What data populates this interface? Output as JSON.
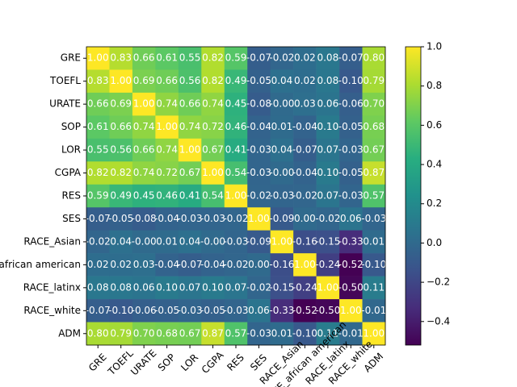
{
  "chart_data": {
    "type": "heatmap",
    "colormap": "viridis",
    "categories": [
      "GRE",
      "TOEFL",
      "URATE",
      "SOP",
      "LOR",
      "CGPA",
      "RES",
      "SES",
      "RACE_Asian",
      "RACE_african american",
      "RACE_latinx",
      "RACE_white",
      "ADM"
    ],
    "values": [
      [
        1,
        0.83,
        0.66,
        0.61,
        0.55,
        0.82,
        0.59,
        -0.07,
        -0.02,
        0.02,
        0.08,
        -0.07,
        0.8
      ],
      [
        0.83,
        1,
        0.69,
        0.66,
        0.56,
        0.82,
        0.49,
        -0.05,
        0.04,
        0.02,
        0.08,
        -0.1,
        0.79
      ],
      [
        0.66,
        0.69,
        1,
        0.74,
        0.66,
        0.74,
        0.45,
        -0.08,
        0,
        0.03,
        0.06,
        -0.06,
        0.7
      ],
      [
        0.61,
        0.66,
        0.74,
        1,
        0.74,
        0.72,
        0.46,
        -0.04,
        0.01,
        -0.04,
        0.1,
        -0.05,
        0.68
      ],
      [
        0.55,
        0.56,
        0.66,
        0.74,
        1,
        0.67,
        0.41,
        -0.03,
        0.04,
        -0.07,
        0.07,
        -0.03,
        0.67
      ],
      [
        0.82,
        0.82,
        0.74,
        0.72,
        0.67,
        1,
        0.54,
        -0.03,
        0,
        -0.04,
        0.1,
        -0.05,
        0.87
      ],
      [
        0.59,
        0.49,
        0.45,
        0.46,
        0.41,
        0.54,
        1,
        -0.02,
        -0.03,
        -0.02,
        0.07,
        -0.03,
        0.57
      ],
      [
        -0.07,
        -0.05,
        -0.08,
        -0.04,
        -0.03,
        -0.03,
        -0.02,
        1,
        -0.09,
        0,
        -0.02,
        0.06,
        -0.03
      ],
      [
        -0.02,
        0.04,
        0,
        0.01,
        0.04,
        0,
        -0.03,
        -0.09,
        1,
        -0.16,
        -0.15,
        -0.33,
        0.01
      ],
      [
        0.02,
        0.02,
        0.03,
        -0.04,
        -0.07,
        -0.04,
        -0.02,
        0,
        -0.16,
        1,
        -0.24,
        -0.52,
        -0.1
      ],
      [
        0.08,
        0.08,
        0.06,
        0.1,
        0.07,
        0.1,
        0.07,
        -0.02,
        -0.15,
        -0.24,
        1,
        -0.5,
        0.11
      ],
      [
        -0.07,
        -0.1,
        -0.06,
        -0.05,
        -0.03,
        -0.05,
        -0.03,
        0.06,
        -0.33,
        -0.52,
        -0.5,
        1,
        -0.01
      ],
      [
        0.8,
        0.79,
        0.7,
        0.68,
        0.67,
        0.87,
        0.57,
        -0.03,
        0.01,
        -0.1,
        0.11,
        -0.01,
        1
      ]
    ],
    "value_labels": [
      [
        "1.00",
        "0.83",
        "0.66",
        "0.61",
        "0.55",
        "0.82",
        "0.59",
        "-0.07",
        "-0.02",
        "0.02",
        "0.08",
        "-0.07",
        "0.80"
      ],
      [
        "0.83",
        "1.00",
        "0.69",
        "0.66",
        "0.56",
        "0.82",
        "0.49",
        "-0.05",
        "0.04",
        "0.02",
        "0.08",
        "-0.10",
        "0.79"
      ],
      [
        "0.66",
        "0.69",
        "1.00",
        "0.74",
        "0.66",
        "0.74",
        "0.45",
        "-0.08",
        "-0.00",
        "0.03",
        "0.06",
        "-0.06",
        "0.70"
      ],
      [
        "0.61",
        "0.66",
        "0.74",
        "1.00",
        "0.74",
        "0.72",
        "0.46",
        "-0.04",
        "0.01",
        "-0.04",
        "0.10",
        "-0.05",
        "0.68"
      ],
      [
        "0.55",
        "0.56",
        "0.66",
        "0.74",
        "1.00",
        "0.67",
        "0.41",
        "-0.03",
        "0.04",
        "-0.07",
        "0.07",
        "-0.03",
        "0.67"
      ],
      [
        "0.82",
        "0.82",
        "0.74",
        "0.72",
        "0.67",
        "1.00",
        "0.54",
        "-0.03",
        "-0.00",
        "-0.04",
        "0.10",
        "-0.05",
        "0.87"
      ],
      [
        "0.59",
        "0.49",
        "0.45",
        "0.46",
        "0.41",
        "0.54",
        "1.00",
        "-0.02",
        "-0.03",
        "-0.02",
        "0.07",
        "-0.03",
        "0.57"
      ],
      [
        "-0.07",
        "-0.05",
        "-0.08",
        "-0.04",
        "-0.03",
        "-0.03",
        "-0.02",
        "1.00",
        "-0.09",
        "0.00",
        "-0.02",
        "0.06",
        "-0.03"
      ],
      [
        "-0.02",
        "0.04",
        "-0.00",
        "0.01",
        "0.04",
        "-0.00",
        "-0.03",
        "-0.09",
        "1.00",
        "-0.16",
        "-0.15",
        "-0.33",
        "0.01"
      ],
      [
        "0.02",
        "0.02",
        "0.03",
        "-0.04",
        "-0.07",
        "-0.04",
        "-0.02",
        "0.00",
        "-0.16",
        "1.00",
        "-0.24",
        "-0.52",
        "-0.10"
      ],
      [
        "0.08",
        "0.08",
        "0.06",
        "0.10",
        "0.07",
        "0.10",
        "0.07",
        "-0.02",
        "-0.15",
        "-0.24",
        "1.00",
        "-0.50",
        "0.11"
      ],
      [
        "-0.07",
        "-0.10",
        "-0.06",
        "-0.05",
        "-0.03",
        "-0.05",
        "-0.03",
        "0.06",
        "-0.33",
        "-0.52",
        "-0.50",
        "1.00",
        "-0.01"
      ],
      [
        "0.80",
        "0.79",
        "0.70",
        "0.68",
        "0.67",
        "0.87",
        "0.57",
        "-0.03",
        "0.01",
        "-0.10",
        "0.11",
        "-0.01",
        "1.00"
      ]
    ],
    "clim": [
      -0.52,
      1
    ],
    "cticks": [
      {
        "value": -0.4,
        "label": "−0.4"
      },
      {
        "value": -0.2,
        "label": "−0.2"
      },
      {
        "value": 0,
        "label": "0.0"
      },
      {
        "value": 0.2,
        "label": "0.2"
      },
      {
        "value": 0.4,
        "label": "0.4"
      },
      {
        "value": 0.6,
        "label": "0.6"
      },
      {
        "value": 0.8,
        "label": "0.8"
      },
      {
        "value": 1,
        "label": "1.0"
      }
    ]
  }
}
